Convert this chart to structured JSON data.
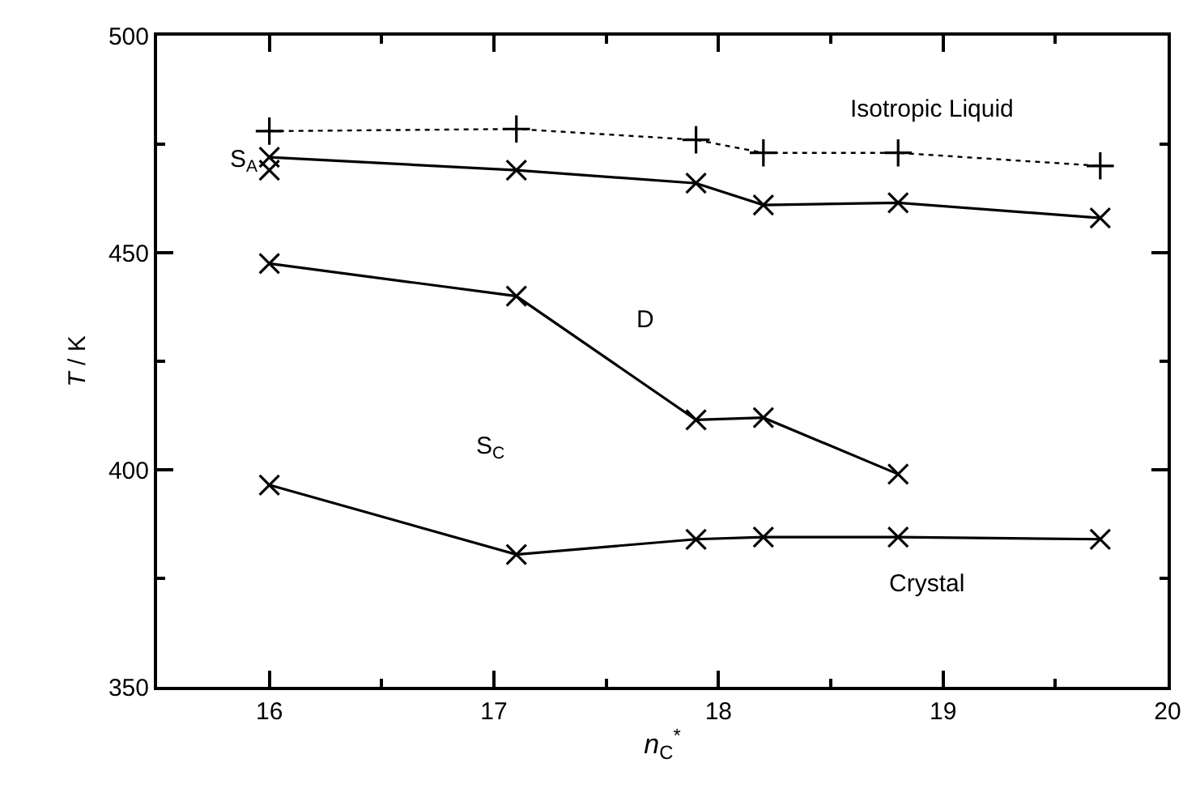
{
  "chart_data": {
    "type": "line",
    "xlabel": "n$_{C}$$^{*}$",
    "ylabel": "T / K",
    "xlim": [
      15.5,
      20
    ],
    "xticks": [
      16,
      17,
      18,
      19,
      20
    ],
    "ylim": [
      350,
      500
    ],
    "yticks": [
      350,
      400,
      450,
      500
    ],
    "series": [
      {
        "color": "#000000",
        "line_style": "dotted",
        "marker": "cross",
        "x": [
          16,
          17.1,
          17.9,
          18.2,
          18.8,
          19.7
        ],
        "values": [
          478,
          478.5,
          476,
          473,
          473,
          470
        ]
      },
      {
        "color": "#000000",
        "line_style": "solid",
        "marker": "x",
        "x": [
          16,
          17.1,
          17.9,
          18.2,
          18.8,
          19.7
        ],
        "values": [
          472,
          469,
          466,
          461,
          461.5,
          458
        ]
      },
      {
        "type": "scatter",
        "color": "#000000",
        "marker": "x",
        "x": [
          16
        ],
        "values": [
          469
        ]
      },
      {
        "color": "#000000",
        "line_style": "solid",
        "marker": "x",
        "x": [
          16,
          17.1,
          17.9,
          18.2,
          18.8
        ],
        "values": [
          447.5,
          440,
          411.5,
          412,
          399
        ]
      },
      {
        "color": "#000000",
        "line_style": "solid",
        "marker": "x",
        "x": [
          16,
          17.1,
          17.9,
          18.2,
          18.8,
          19.7
        ],
        "values": [
          396.5,
          380.5,
          384,
          384.5,
          384.5,
          384
        ]
      }
    ],
    "annotations": [
      "Isotropic Liquid",
      "S$_{A}$",
      "D",
      "S$_{C}$",
      "Crystal"
    ]
  }
}
